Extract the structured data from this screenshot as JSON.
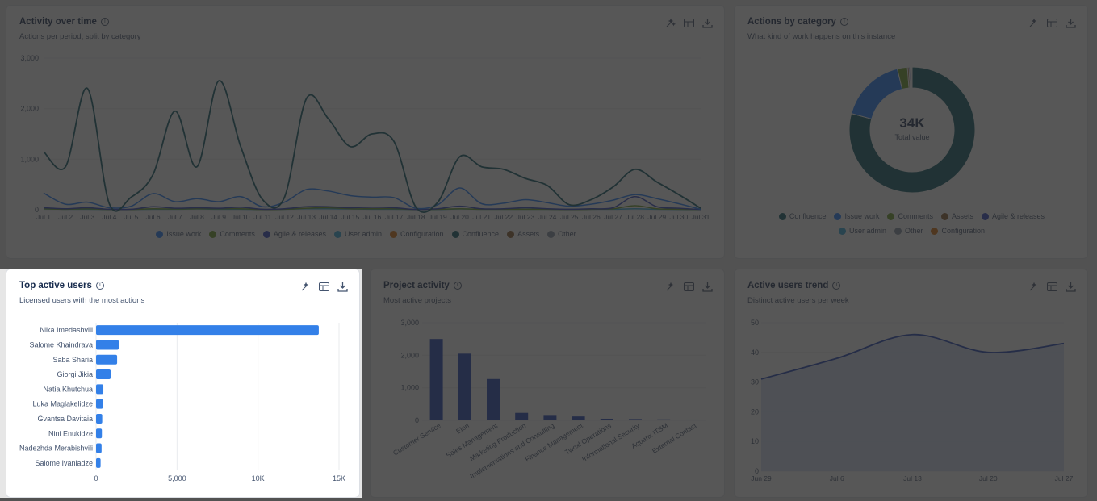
{
  "colors": {
    "issue_work": "#1d7afc",
    "comments": "#6a9a23",
    "agile": "#2a3fbf",
    "user_admin": "#2fa8d8",
    "configuration": "#d97008",
    "confluence": "#0a5663",
    "assets": "#8a5a2b",
    "other": "#8590a2",
    "bar_blue": "#3380e8",
    "bar_navy": "#1f3fb7"
  },
  "cards": {
    "activity": {
      "title": "Activity over time",
      "subtitle": "Actions per period, split by category"
    },
    "categories": {
      "title": "Actions by category",
      "subtitle": "What kind of work happens on this instance",
      "center_value": "34K",
      "center_label": "Total value"
    },
    "top_users": {
      "title": "Top active users",
      "subtitle": "Licensed users with the most actions"
    },
    "projects": {
      "title": "Project activity",
      "subtitle": "Most active projects"
    },
    "trend": {
      "title": "Active users trend",
      "subtitle": "Distinct active users per week"
    }
  },
  "legends": {
    "activity": [
      {
        "label": "Issue work",
        "color": "#1d7afc"
      },
      {
        "label": "Comments",
        "color": "#6a9a23"
      },
      {
        "label": "Agile & releases",
        "color": "#2a3fbf"
      },
      {
        "label": "User admin",
        "color": "#2fa8d8"
      },
      {
        "label": "Configuration",
        "color": "#d97008"
      },
      {
        "label": "Confluence",
        "color": "#0a5663"
      },
      {
        "label": "Assets",
        "color": "#8a5a2b"
      },
      {
        "label": "Other",
        "color": "#8590a2"
      }
    ],
    "categories": [
      {
        "label": "Confluence",
        "color": "#0a5663"
      },
      {
        "label": "Issue work",
        "color": "#1d7afc"
      },
      {
        "label": "Comments",
        "color": "#6a9a23"
      },
      {
        "label": "Assets",
        "color": "#8a5a2b"
      },
      {
        "label": "Agile & releases",
        "color": "#2a3fbf"
      },
      {
        "label": "User admin",
        "color": "#2fa8d8"
      },
      {
        "label": "Other",
        "color": "#8590a2"
      },
      {
        "label": "Configuration",
        "color": "#d97008"
      }
    ]
  },
  "chart_data": [
    {
      "type": "line",
      "x": [
        "Jul 1",
        "Jul 2",
        "Jul 3",
        "Jul 4",
        "Jul 5",
        "Jul 6",
        "Jul 7",
        "Jul 8",
        "Jul 9",
        "Jul 10",
        "Jul 11",
        "Jul 12",
        "Jul 13",
        "Jul 14",
        "Jul 15",
        "Jul 16",
        "Jul 17",
        "Jul 18",
        "Jul 19",
        "Jul 20",
        "Jul 21",
        "Jul 22",
        "Jul 23",
        "Jul 24",
        "Jul 25",
        "Jul 26",
        "Jul 27",
        "Jul 28",
        "Jul 29",
        "Jul 30",
        "Jul 31"
      ],
      "yticks": [
        "0",
        "1,000",
        "2,000",
        "3,000"
      ],
      "ylim": [
        0,
        3000
      ],
      "series": [
        {
          "name": "Confluence",
          "values": [
            1150,
            850,
            2400,
            120,
            250,
            700,
            1950,
            850,
            2550,
            1250,
            200,
            250,
            2200,
            1800,
            1250,
            1500,
            1350,
            50,
            150,
            1050,
            850,
            800,
            620,
            480,
            100,
            200,
            450,
            800,
            550,
            300,
            30
          ]
        },
        {
          "name": "Issue work",
          "values": [
            330,
            110,
            150,
            40,
            70,
            320,
            160,
            220,
            160,
            260,
            60,
            150,
            400,
            370,
            280,
            250,
            240,
            30,
            100,
            430,
            120,
            130,
            200,
            140,
            70,
            110,
            190,
            300,
            220,
            120,
            10
          ]
        },
        {
          "name": "Agile & releases",
          "values": [
            40,
            20,
            40,
            10,
            10,
            60,
            30,
            40,
            30,
            50,
            10,
            20,
            60,
            60,
            40,
            50,
            40,
            5,
            20,
            70,
            20,
            20,
            40,
            20,
            10,
            20,
            40,
            260,
            60,
            30,
            5
          ]
        },
        {
          "name": "Comments",
          "values": [
            20,
            10,
            20,
            5,
            5,
            20,
            15,
            20,
            20,
            20,
            5,
            10,
            30,
            40,
            20,
            20,
            20,
            5,
            10,
            20,
            10,
            10,
            10,
            10,
            5,
            10,
            20,
            80,
            20,
            10,
            5
          ]
        },
        {
          "name": "User admin",
          "values": [
            15,
            10,
            10,
            5,
            5,
            10,
            10,
            15,
            10,
            10,
            5,
            10,
            20,
            20,
            15,
            10,
            10,
            5,
            5,
            15,
            10,
            10,
            10,
            10,
            5,
            10,
            10,
            20,
            10,
            5,
            5
          ]
        }
      ]
    },
    {
      "type": "pie",
      "categories": [
        "Confluence",
        "Issue work",
        "Comments",
        "Assets",
        "Agile & releases",
        "User admin",
        "Other",
        "Configuration"
      ],
      "values": [
        0.792,
        0.17,
        0.026,
        0.004,
        0.003,
        0.002,
        0.002,
        0.001
      ]
    },
    {
      "type": "bar",
      "orientation": "horizontal",
      "categories": [
        "Nika Imedashvili",
        "Salome Khaindrava",
        "Saba Sharia",
        "Giorgi Jikia",
        "Natia Khutchua",
        "Luka Maglakelidze",
        "Gvantsa Davitaia",
        "Nini Enukidze",
        "Nadezhda Merabishvili",
        "Salome Ivaniadze"
      ],
      "values": [
        13750,
        1400,
        1300,
        900,
        450,
        420,
        380,
        360,
        340,
        280
      ],
      "xticks": [
        "0",
        "5,000",
        "10K",
        "15K"
      ],
      "xlim": [
        0,
        15000
      ]
    },
    {
      "type": "bar",
      "categories": [
        "Customer Service",
        "Elen",
        "Sales Management",
        "Marketing Production",
        "Implementations and Consulting",
        "Finance Management",
        "Twoxl Operations",
        "Informational Security",
        "Aquarix ITSM",
        "External Contact"
      ],
      "values": [
        2500,
        2050,
        1270,
        230,
        140,
        120,
        50,
        40,
        30,
        25
      ],
      "yticks": [
        "0",
        "1,000",
        "2,000",
        "3,000"
      ],
      "ylim": [
        0,
        3000
      ]
    },
    {
      "type": "area",
      "x": [
        "Jun 29",
        "Jul 6",
        "Jul 13",
        "Jul 20",
        "Jul 27"
      ],
      "values": [
        31,
        38,
        46,
        40,
        43
      ],
      "yticks": [
        "0",
        "10",
        "20",
        "30",
        "40",
        "50"
      ],
      "ylim": [
        0,
        50
      ]
    }
  ]
}
